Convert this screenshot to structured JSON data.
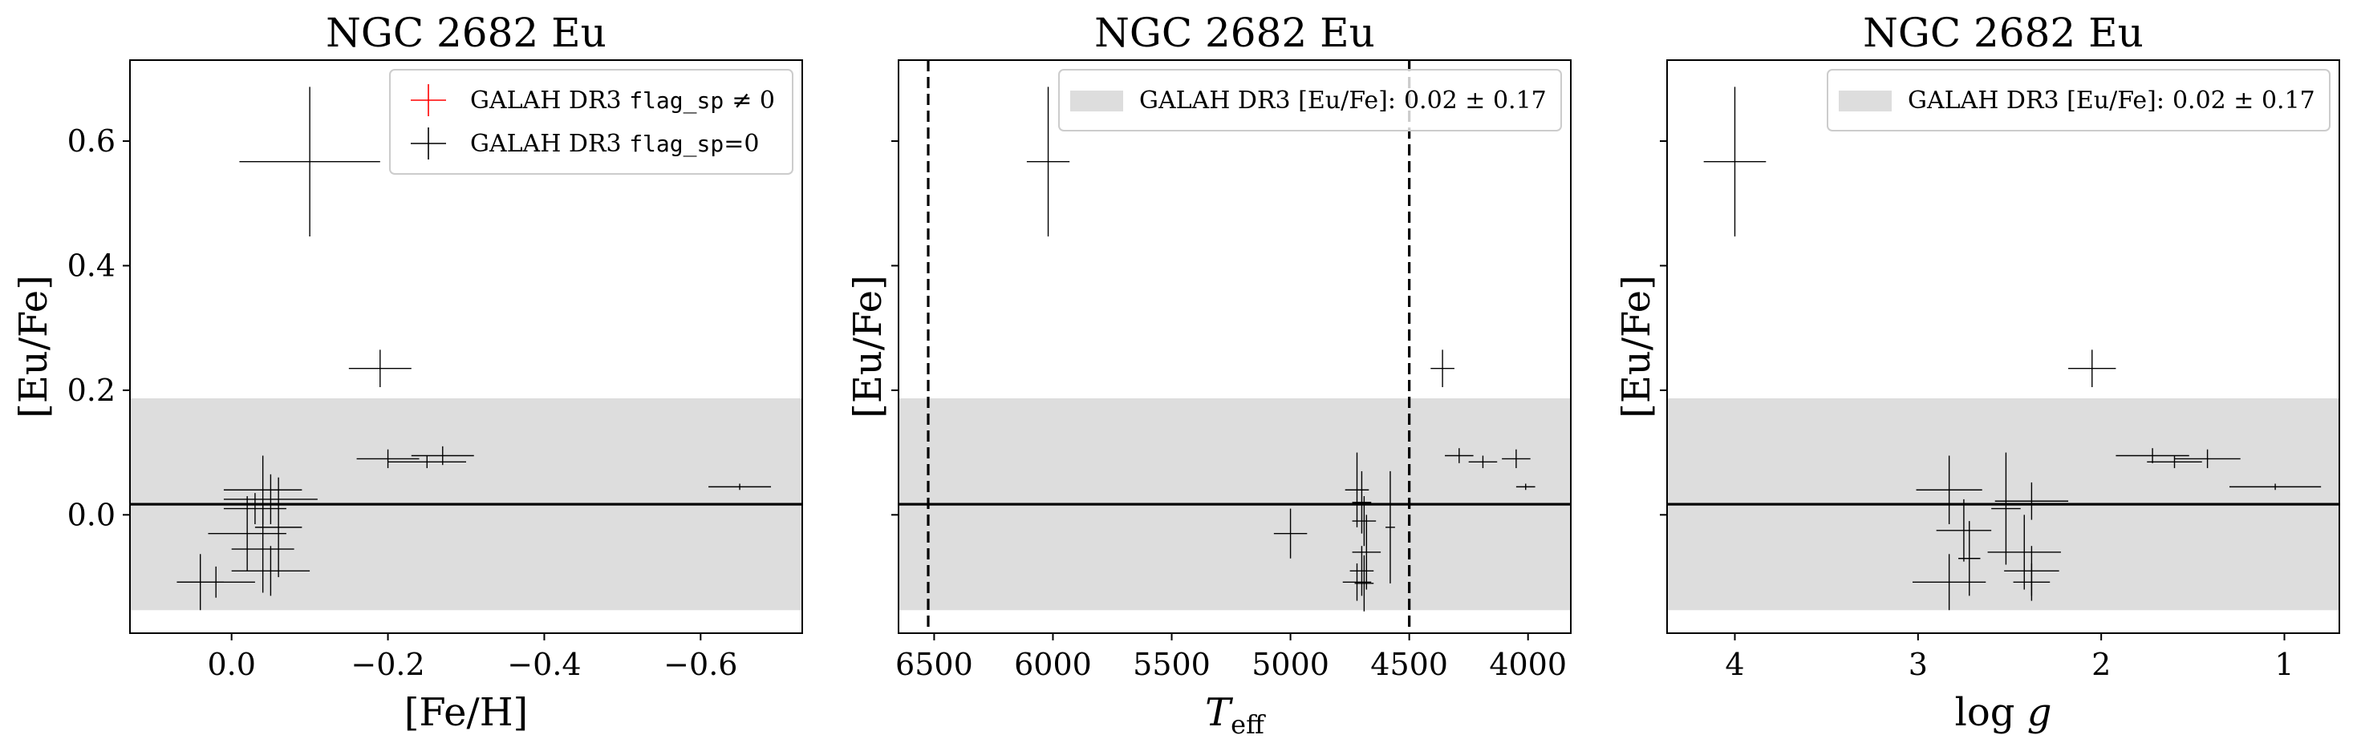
{
  "chart_data": [
    {
      "type": "scatter",
      "title": "NGC 2682 Eu",
      "xlabel": "[Fe/H]",
      "ylabel": "[Eu/Fe]",
      "x_inverted": true,
      "xlim": [
        0.13,
        -0.73
      ],
      "ylim": [
        -0.19,
        0.73
      ],
      "xticks": [
        0.0,
        -0.2,
        -0.4,
        -0.6
      ],
      "xtick_labels": [
        "0.0",
        "−0.2",
        "−0.4",
        "−0.6"
      ],
      "yticks": [
        0.0,
        0.2,
        0.4,
        0.6
      ],
      "ytick_labels": [
        "0.0",
        "0.2",
        "0.4",
        "0.6"
      ],
      "show_yticklabels": true,
      "band": {
        "center": 0.017,
        "lower": -0.153,
        "upper": 0.187
      },
      "reference_line": 0.017,
      "legend": {
        "placement": "upper right",
        "entries": [
          {
            "label": "GALAH DR3",
            "label_code": "flag_sp",
            "label_suffix": "≠ 0",
            "color": "#ff0000",
            "marker": "cross"
          },
          {
            "label": "GALAH DR3",
            "label_code": "flag_sp",
            "label_suffix": "=0",
            "color": "#000000",
            "marker": "cross"
          }
        ]
      },
      "series": [
        {
          "name": "GALAH DR3 flag_sp=0",
          "color": "#000000",
          "points": [
            {
              "x": -0.1,
              "y": 0.567,
              "xerr": 0.09,
              "yerr": 0.12
            },
            {
              "x": -0.19,
              "y": 0.235,
              "xerr": 0.04,
              "yerr": 0.03
            },
            {
              "x": -0.2,
              "y": 0.09,
              "xerr": 0.04,
              "yerr": 0.015
            },
            {
              "x": -0.27,
              "y": 0.095,
              "xerr": 0.04,
              "yerr": 0.015
            },
            {
              "x": -0.25,
              "y": 0.085,
              "xerr": 0.05,
              "yerr": 0.01
            },
            {
              "x": -0.65,
              "y": 0.045,
              "xerr": 0.04,
              "yerr": 0.005
            },
            {
              "x": -0.04,
              "y": 0.04,
              "xerr": 0.05,
              "yerr": 0.055
            },
            {
              "x": -0.05,
              "y": 0.025,
              "xerr": 0.06,
              "yerr": 0.04
            },
            {
              "x": -0.03,
              "y": 0.01,
              "xerr": 0.04,
              "yerr": 0.025
            },
            {
              "x": -0.02,
              "y": -0.03,
              "xerr": 0.05,
              "yerr": 0.06
            },
            {
              "x": -0.04,
              "y": -0.055,
              "xerr": 0.04,
              "yerr": 0.07
            },
            {
              "x": -0.05,
              "y": -0.09,
              "xerr": 0.05,
              "yerr": 0.04
            },
            {
              "x": -0.06,
              "y": -0.02,
              "xerr": 0.03,
              "yerr": 0.08
            },
            {
              "x": 0.02,
              "y": -0.108,
              "xerr": 0.05,
              "yerr": 0.025
            },
            {
              "x": 0.04,
              "y": -0.108,
              "xerr": 0.03,
              "yerr": 0.045
            }
          ]
        }
      ]
    },
    {
      "type": "scatter",
      "title": "NGC 2682 Eu",
      "xlabel": "T",
      "xlabel_sub": "eff",
      "ylabel": "[Eu/Fe]",
      "x_inverted": true,
      "xlim": [
        6650,
        3820
      ],
      "ylim": [
        -0.19,
        0.73
      ],
      "xticks": [
        6500,
        6000,
        5500,
        5000,
        4500,
        4000
      ],
      "xtick_labels": [
        "6500",
        "6000",
        "5500",
        "5000",
        "4500",
        "4000"
      ],
      "yticks": [
        0.0,
        0.2,
        0.4,
        0.6
      ],
      "ytick_labels": [
        "",
        "",
        "",
        ""
      ],
      "show_yticklabels": false,
      "band": {
        "center": 0.017,
        "lower": -0.153,
        "upper": 0.187
      },
      "reference_line": 0.017,
      "vlines": [
        6525,
        4500
      ],
      "legend": {
        "placement": "upper right",
        "entries": [
          {
            "label": "GALAH DR3 [Eu/Fe]:",
            "label_value": "0.02 ± 0.17",
            "color": "#dddddd",
            "marker": "patch"
          }
        ]
      },
      "series": [
        {
          "name": "GALAH DR3 flag_sp=0",
          "color": "#000000",
          "points": [
            {
              "x": 6020,
              "y": 0.567,
              "xerr": 90,
              "yerr": 0.12
            },
            {
              "x": 4360,
              "y": 0.235,
              "xerr": 50,
              "yerr": 0.03
            },
            {
              "x": 4290,
              "y": 0.095,
              "xerr": 60,
              "yerr": 0.012
            },
            {
              "x": 4190,
              "y": 0.085,
              "xerr": 60,
              "yerr": 0.01
            },
            {
              "x": 4050,
              "y": 0.09,
              "xerr": 60,
              "yerr": 0.015
            },
            {
              "x": 4010,
              "y": 0.045,
              "xerr": 40,
              "yerr": 0.005
            },
            {
              "x": 5000,
              "y": -0.03,
              "xerr": 70,
              "yerr": 0.04
            },
            {
              "x": 4720,
              "y": 0.04,
              "xerr": 50,
              "yerr": 0.06
            },
            {
              "x": 4700,
              "y": 0.02,
              "xerr": 40,
              "yerr": 0.05
            },
            {
              "x": 4690,
              "y": -0.01,
              "xerr": 50,
              "yerr": 0.04
            },
            {
              "x": 4680,
              "y": -0.06,
              "xerr": 60,
              "yerr": 0.06
            },
            {
              "x": 4700,
              "y": -0.09,
              "xerr": 50,
              "yerr": 0.04
            },
            {
              "x": 4720,
              "y": -0.108,
              "xerr": 60,
              "yerr": 0.03
            },
            {
              "x": 4690,
              "y": -0.11,
              "xerr": 40,
              "yerr": 0.045
            },
            {
              "x": 4580,
              "y": -0.02,
              "xerr": 20,
              "yerr": 0.09
            }
          ]
        }
      ]
    },
    {
      "type": "scatter",
      "title": "NGC 2682 Eu",
      "xlabel": "log g",
      "ylabel": "[Eu/Fe]",
      "x_inverted": true,
      "xlim": [
        4.37,
        0.7
      ],
      "ylim": [
        -0.19,
        0.73
      ],
      "xticks": [
        4,
        3,
        2,
        1
      ],
      "xtick_labels": [
        "4",
        "3",
        "2",
        "1"
      ],
      "yticks": [
        0.0,
        0.2,
        0.4,
        0.6
      ],
      "ytick_labels": [
        "",
        "",
        "",
        ""
      ],
      "show_yticklabels": false,
      "band": {
        "center": 0.017,
        "lower": -0.153,
        "upper": 0.187
      },
      "reference_line": 0.017,
      "legend": {
        "placement": "upper right",
        "entries": [
          {
            "label": "GALAH DR3 [Eu/Fe]:",
            "label_value": "0.02 ± 0.17",
            "color": "#dddddd",
            "marker": "patch"
          }
        ]
      },
      "series": [
        {
          "name": "GALAH DR3 flag_sp=0",
          "color": "#000000",
          "points": [
            {
              "x": 4.0,
              "y": 0.567,
              "xerr": 0.17,
              "yerr": 0.12
            },
            {
              "x": 2.05,
              "y": 0.235,
              "xerr": 0.13,
              "yerr": 0.03
            },
            {
              "x": 1.72,
              "y": 0.095,
              "xerr": 0.2,
              "yerr": 0.012
            },
            {
              "x": 1.6,
              "y": 0.085,
              "xerr": 0.15,
              "yerr": 0.01
            },
            {
              "x": 1.42,
              "y": 0.09,
              "xerr": 0.18,
              "yerr": 0.015
            },
            {
              "x": 1.05,
              "y": 0.045,
              "xerr": 0.25,
              "yerr": 0.005
            },
            {
              "x": 2.83,
              "y": 0.04,
              "xerr": 0.18,
              "yerr": 0.055
            },
            {
              "x": 2.75,
              "y": -0.025,
              "xerr": 0.15,
              "yerr": 0.05
            },
            {
              "x": 2.52,
              "y": 0.01,
              "xerr": 0.08,
              "yerr": 0.09
            },
            {
              "x": 2.38,
              "y": 0.022,
              "xerr": 0.2,
              "yerr": 0.03
            },
            {
              "x": 2.42,
              "y": -0.06,
              "xerr": 0.2,
              "yerr": 0.06
            },
            {
              "x": 2.38,
              "y": -0.09,
              "xerr": 0.15,
              "yerr": 0.04
            },
            {
              "x": 2.83,
              "y": -0.108,
              "xerr": 0.2,
              "yerr": 0.045
            },
            {
              "x": 2.38,
              "y": -0.108,
              "xerr": 0.1,
              "yerr": 0.03
            },
            {
              "x": 2.72,
              "y": -0.07,
              "xerr": 0.06,
              "yerr": 0.06
            }
          ]
        }
      ]
    }
  ]
}
